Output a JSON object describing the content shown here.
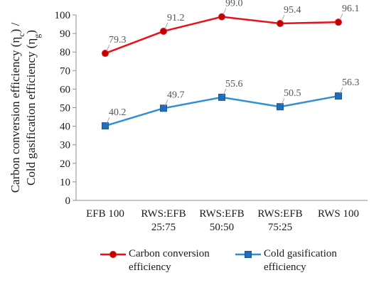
{
  "chart_data": {
    "type": "line",
    "categories": [
      "EFB 100",
      "RWS:EFB 25:75",
      "RWS:EFB 50:50",
      "RWS:EFB 75:25",
      "RWS 100"
    ],
    "category_lines": [
      [
        "EFB 100"
      ],
      [
        "RWS:EFB",
        "25:75"
      ],
      [
        "RWS:EFB",
        "50:50"
      ],
      [
        "RWS:EFB",
        "75:25"
      ],
      [
        "RWS 100"
      ]
    ],
    "ylabel_line1": "Carbon conversion efficiency (η",
    "ylabel_sub1": "c",
    "ylabel_mid": ") /",
    "ylabel_line2": "Cold gasification efficiency (η",
    "ylabel_sub2": "g",
    "ylabel_end": ")",
    "ylim": [
      0,
      100
    ],
    "yticks": [
      0,
      10,
      20,
      30,
      40,
      50,
      60,
      70,
      80,
      90,
      100
    ],
    "grid": false,
    "legend_position": "bottom",
    "series": [
      {
        "name": "Carbon conversion efficiency",
        "values": [
          79.3,
          91.2,
          99.0,
          95.4,
          96.1
        ],
        "labels": [
          "79.3",
          "91.2",
          "99.0",
          "95.4",
          "96.1"
        ],
        "color": "#e8111b",
        "marker": "circle",
        "marker_fill": "#c00000"
      },
      {
        "name": "Cold gasification efficiency",
        "values": [
          40.2,
          49.7,
          55.6,
          50.5,
          56.3
        ],
        "labels": [
          "40.2",
          "49.7",
          "55.6",
          "50.5",
          "56.3"
        ],
        "color": "#2f8fd6",
        "marker": "square",
        "marker_fill": "#1f6fb8"
      }
    ]
  },
  "legend": {
    "item1": "Carbon conversion efficiency",
    "item2": "Cold gasification efficiency"
  }
}
